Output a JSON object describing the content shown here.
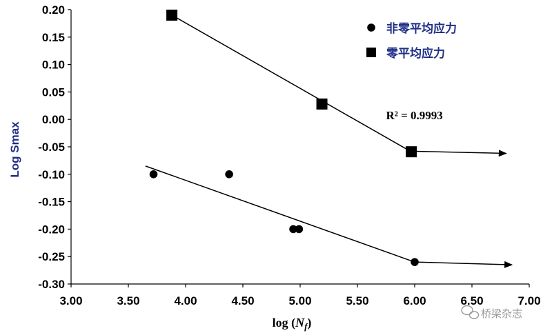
{
  "chart_data": {
    "type": "scatter",
    "xlabel_prefix": "log (",
    "xlabel_var": "N",
    "xlabel_sub": "f",
    "xlabel_suffix": ")",
    "ylabel": "Log Smax",
    "xlim": [
      3.0,
      7.0
    ],
    "ylim": [
      -0.3,
      0.2
    ],
    "xticks": [
      "3.00",
      "3.50",
      "4.00",
      "4.50",
      "5.00",
      "5.50",
      "6.00",
      "6.50",
      "7.00"
    ],
    "yticks": [
      "0.20",
      "0.15",
      "0.10",
      "0.05",
      "0.00",
      "-0.05",
      "-0.10",
      "-0.15",
      "-0.20",
      "-0.25",
      "-0.30"
    ],
    "grid": false,
    "legend_position": "top-right",
    "series": [
      {
        "name": "非零平均应力",
        "marker": "circle",
        "points": [
          [
            3.72,
            -0.1
          ],
          [
            4.38,
            -0.1
          ],
          [
            4.94,
            -0.2
          ],
          [
            4.99,
            -0.2
          ],
          [
            6.0,
            -0.26
          ]
        ],
        "fit_line": [
          [
            3.65,
            -0.085
          ],
          [
            6.0,
            -0.26
          ]
        ],
        "runout_arrow": [
          [
            6.0,
            -0.26
          ],
          [
            6.85,
            -0.265
          ]
        ]
      },
      {
        "name": "零平均应力",
        "marker": "square",
        "points": [
          [
            3.88,
            0.19
          ],
          [
            5.19,
            0.028
          ],
          [
            5.97,
            -0.059
          ]
        ],
        "fit_line": [
          [
            3.88,
            0.19
          ],
          [
            5.97,
            -0.059
          ]
        ],
        "runout_arrow": [
          [
            5.97,
            -0.058
          ],
          [
            6.8,
            -0.062
          ]
        ]
      }
    ],
    "annotations": [
      {
        "text": "R² = 0.9993",
        "x": 5.75,
        "y": 0.0
      }
    ],
    "colors": {
      "marker": "#000000",
      "axis_label": "#1f2f86",
      "legend_text": "#1f2f86"
    }
  },
  "watermark": {
    "text": "桥梁杂志",
    "icon": "wechat-icon"
  }
}
